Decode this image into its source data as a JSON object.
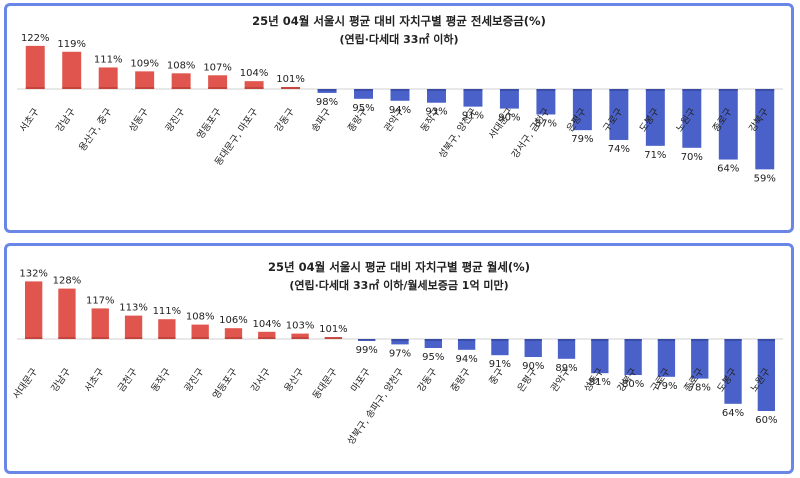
{
  "chart_data": [
    {
      "type": "bar",
      "title": "25년 04월 서울시 평균 대비 자치구별 평균 전세보증금(%)",
      "subtitle": "(연립·다세대 33㎡ 이하)",
      "baseline": 100,
      "categories": [
        "서초구",
        "강남구",
        "용산구, 중구",
        "성동구",
        "광진구",
        "영등포구",
        "동대문구, 마포구",
        "강동구",
        "송파구",
        "종랑구",
        "관악구",
        "동작구",
        "성북구, 양천구",
        "서대문구",
        "강서구, 금천구",
        "은평구",
        "구로구",
        "도봉구",
        "노원구",
        "종로구",
        "강북구"
      ],
      "values": [
        122,
        119,
        111,
        109,
        108,
        107,
        104,
        101,
        98,
        95,
        94,
        93,
        91,
        90,
        87,
        79,
        74,
        71,
        70,
        64,
        59
      ],
      "value_labels": [
        "122%",
        "119%",
        "111%",
        "109%",
        "108%",
        "107%",
        "104%",
        "101%",
        "98%",
        "95%",
        "94%",
        "93%",
        "91%",
        "90%",
        "87%",
        "79%",
        "74%",
        "71%",
        "70%",
        "64%",
        "59%"
      ],
      "colors": {
        "above": "#e0564e",
        "below": "#4a61c9"
      }
    },
    {
      "type": "bar",
      "title": "25년 04월 서울시 평균 대비 자치구별 평균 월세(%)",
      "subtitle": "(연립·다세대 33㎡ 이하/월세보증금  1억 미만)",
      "baseline": 100,
      "categories": [
        "서대문구",
        "강남구",
        "서초구",
        "금천구",
        "동작구",
        "광진구",
        "영등포구",
        "강서구",
        "용산구",
        "동대문구",
        "마포구",
        "성북구, 송파구, 양천구",
        "강동구",
        "중랑구",
        "중구",
        "은평구",
        "관악구",
        "성동구",
        "강북구",
        "구로구",
        "종로구",
        "도봉구",
        "노원구"
      ],
      "values": [
        132,
        128,
        117,
        113,
        111,
        108,
        106,
        104,
        103,
        101,
        99,
        97,
        95,
        94,
        91,
        90,
        89,
        81,
        80,
        79,
        78,
        64,
        60
      ],
      "value_labels": [
        "132%",
        "128%",
        "117%",
        "113%",
        "111%",
        "108%",
        "106%",
        "104%",
        "103%",
        "101%",
        "99%",
        "97%",
        "95%",
        "94%",
        "91%",
        "90%",
        "89%",
        "81%",
        "80%",
        "79%",
        "78%",
        "64%",
        "60%"
      ],
      "colors": {
        "above": "#e0564e",
        "below": "#4a61c9"
      }
    }
  ]
}
